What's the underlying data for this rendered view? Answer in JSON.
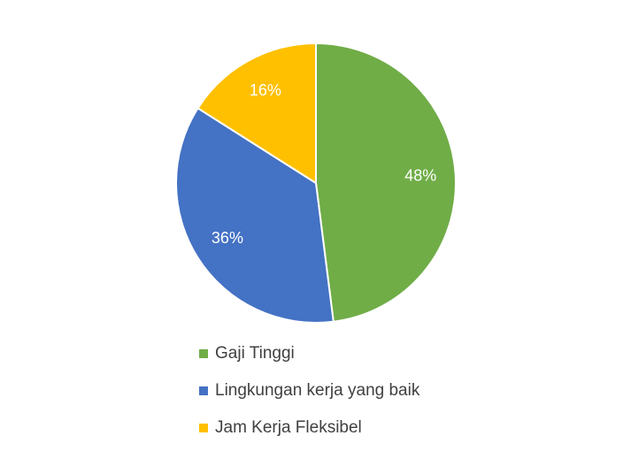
{
  "chart_data": {
    "type": "pie",
    "categories": [
      "Gaji Tinggi",
      "Lingkungan kerja yang baik",
      "Jam Kerja Fleksibel"
    ],
    "values": [
      48,
      36,
      16
    ],
    "value_labels": [
      "48%",
      "36%",
      "16%"
    ],
    "colors": [
      "#70ad47",
      "#4472c4",
      "#ffc000"
    ],
    "legend": "bottom"
  }
}
